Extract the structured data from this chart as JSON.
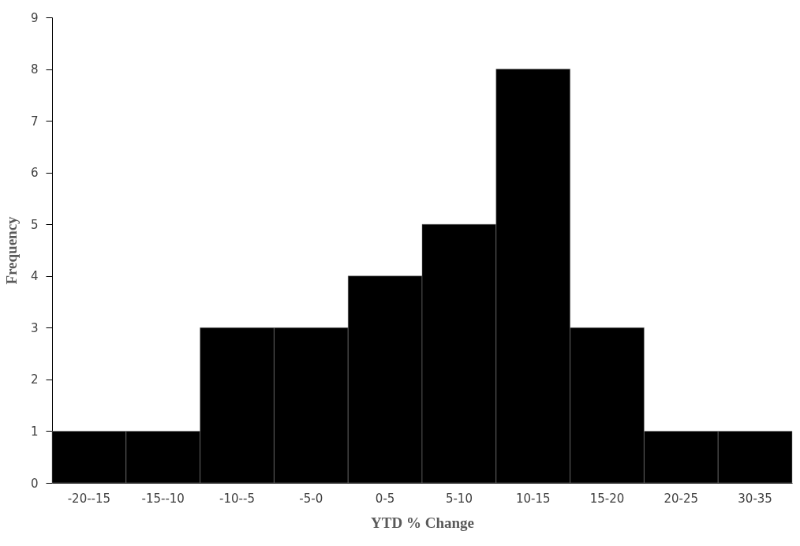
{
  "chart_data": {
    "type": "bar",
    "xlabel": "YTD % Change",
    "ylabel": "Frequency",
    "categories": [
      "-20--15",
      "-15--10",
      "-10--5",
      "-5-0",
      "0-5",
      "5-10",
      "10-15",
      "15-20",
      "20-25",
      "30-35"
    ],
    "values": [
      1,
      1,
      3,
      3,
      4,
      5,
      8,
      3,
      1,
      1
    ],
    "color": "#000000",
    "ylim": [
      0,
      9
    ],
    "yticks": [
      0,
      1,
      2,
      3,
      4,
      5,
      6,
      7,
      8,
      9
    ],
    "grid": false
  }
}
